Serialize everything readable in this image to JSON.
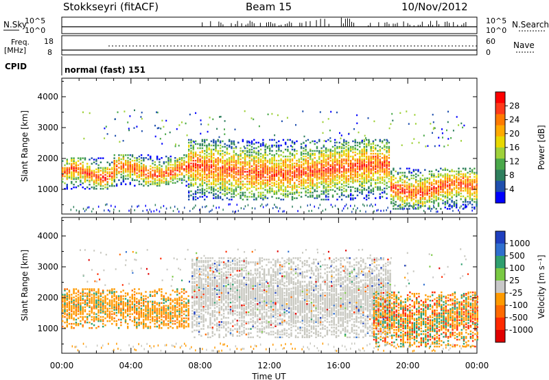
{
  "header": {
    "station": "Stokkseyri (fitACF)",
    "beam": "Beam 15",
    "date": "10/Nov/2012"
  },
  "panels": {
    "nsky_label": "N.Sky",
    "nsearch_label": "N.Search",
    "freq_label_line1": "Freq.",
    "freq_label_line2": "[MHz]",
    "nave_label": "Nave",
    "cpid_label": "CPID",
    "cpid_value": "normal (fast) 151",
    "noise_left_ticks": [
      "10^5",
      "10^0"
    ],
    "noise_right_ticks": [
      "10^5",
      "10^0"
    ],
    "freq_ticks": [
      "18",
      "8"
    ],
    "nave_ticks": [
      "60",
      "0"
    ]
  },
  "chart_data": [
    {
      "type": "heatmap",
      "name": "power",
      "x": [
        "00:00",
        "04:00",
        "08:00",
        "12:00",
        "16:00",
        "20:00",
        "00:00"
      ],
      "xlabel": "Time UT",
      "ylabel": "Slant Range [km]",
      "ylim": [
        200,
        4600
      ],
      "yticks": [
        1000,
        2000,
        3000,
        4000
      ],
      "colorbar": {
        "label": "Power [dB]",
        "ticks": [
          "28",
          "24",
          "20",
          "16",
          "12",
          "8",
          "4"
        ],
        "colors": [
          "#ff0000",
          "#ff3a1a",
          "#ff7a00",
          "#ffaa00",
          "#e8d800",
          "#9fd13a",
          "#4aa84a",
          "#2f7f5e",
          "#1f4fae",
          "#0000ff"
        ]
      },
      "regions": [
        {
          "t0": 0.0,
          "t1": 3.0,
          "r0": 1000,
          "r1": 2000,
          "level": "mixed"
        },
        {
          "t0": 3.0,
          "t1": 7.3,
          "r0": 1100,
          "r1": 2100,
          "level": "high"
        },
        {
          "t0": 7.3,
          "t1": 19.0,
          "r0": 650,
          "r1": 2600,
          "level": "high"
        },
        {
          "t0": 19.0,
          "t1": 24.0,
          "r0": 350,
          "r1": 1700,
          "level": "high"
        }
      ]
    },
    {
      "type": "heatmap",
      "name": "velocity",
      "x": [
        "00:00",
        "04:00",
        "08:00",
        "12:00",
        "16:00",
        "20:00",
        "00:00"
      ],
      "xlabel": "Time UT",
      "ylabel": "Slant Range [km]",
      "ylim": [
        200,
        4600
      ],
      "yticks": [
        1000,
        2000,
        3000,
        4000
      ],
      "colorbar": {
        "label": "Velocity [m s⁻¹]",
        "ticks": [
          "1000",
          "500",
          "100",
          "25",
          "-25",
          "-100",
          "-500",
          "-1000"
        ],
        "colors": [
          "#1f3fbf",
          "#2f6fcf",
          "#2f9f6f",
          "#7ac943",
          "#c8c8c8",
          "#ff9a00",
          "#ff6a00",
          "#ff2a00",
          "#e00000"
        ]
      },
      "regions": [
        {
          "t0": 0.0,
          "t1": 7.3,
          "r0": 1000,
          "r1": 2300,
          "level": "orange"
        },
        {
          "t0": 7.5,
          "t1": 19.0,
          "r0": 700,
          "r1": 3300,
          "level": "grey"
        },
        {
          "t0": 18.0,
          "t1": 24.0,
          "r0": 400,
          "r1": 2200,
          "level": "orange-green"
        }
      ]
    }
  ]
}
